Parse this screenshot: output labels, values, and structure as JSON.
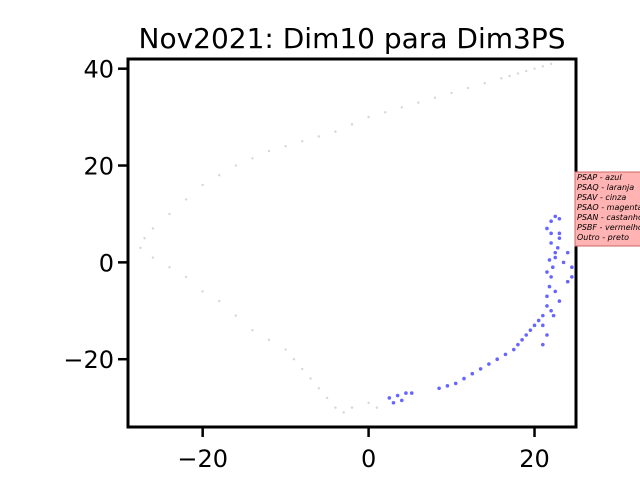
{
  "chart_data": {
    "type": "scatter",
    "title": "Nov2021: Dim10 para Dim3PS",
    "xlabel": "",
    "ylabel": "",
    "xlim": [
      -29,
      25
    ],
    "ylim": [
      -34,
      42
    ],
    "xticks": [
      -20,
      0,
      20
    ],
    "xtick_labels": [
      "−20",
      "0",
      "20"
    ],
    "yticks": [
      40,
      20,
      0,
      -20
    ],
    "ytick_labels": [
      "40",
      "20",
      "0",
      "−20"
    ],
    "grid": false,
    "legend_placement": "right",
    "legend": {
      "background": "#ffb3b3",
      "entries": [
        "PSAP - azul",
        "PSAQ - laranja",
        "PSAV - cinza",
        "PSAO - magenta",
        "PSAN - castanho",
        "PSBF - vermelho",
        "Outro - preto"
      ]
    },
    "colors": {
      "blue_points": "#3333ff",
      "faint_points": "#d0d0d8"
    },
    "series": [
      {
        "color": "#3333ff",
        "x": [
          2.5,
          3.5,
          4.5,
          5.2,
          3.0,
          4.0,
          8.5,
          9.5,
          10.5,
          11.5,
          12.5,
          13.5,
          14.5,
          15.5,
          16.5,
          17.5,
          18.0,
          18.5,
          19.0,
          19.5,
          20.0,
          20.5,
          21.0,
          21.0,
          21.5,
          21.5,
          21.8,
          22.0,
          22.2,
          22.5,
          22.8,
          23.0,
          23.5,
          24.0,
          24.5,
          21.5,
          22.0,
          22.5,
          23.0,
          22.0,
          21.0,
          21.5,
          22.0,
          22.5,
          23.0,
          24.0,
          24.5,
          21.5,
          22.0,
          22.5,
          23.0,
          21.8,
          22.3
        ],
        "y": [
          -28.0,
          -27.5,
          -27.0,
          -27.0,
          -29.0,
          -28.5,
          -26.0,
          -25.5,
          -25.0,
          -24.0,
          -23.0,
          -22.0,
          -21.0,
          -20.0,
          -19.0,
          -18.0,
          -17.0,
          -16.0,
          -15.0,
          -14.0,
          -13.0,
          -12.0,
          -11.0,
          -17.0,
          -9.0,
          -7.0,
          -5.0,
          -3.0,
          -1.0,
          1.0,
          3.0,
          5.0,
          0.0,
          2.0,
          -3.0,
          7.0,
          8.5,
          9.5,
          9.0,
          6.0,
          -13.0,
          -15.0,
          -10.0,
          -6.0,
          -8.0,
          -4.0,
          -1.0,
          -2.0,
          4.0,
          2.0,
          6.0,
          0.5,
          -11.0
        ]
      },
      {
        "color": "#d0d0d8",
        "x": [
          20.0,
          18.0,
          16.0,
          14.0,
          12.0,
          10.0,
          8.0,
          6.0,
          4.0,
          2.0,
          0.0,
          -2.0,
          -4.0,
          -6.0,
          -8.0,
          -10.0,
          -12.0,
          -14.0,
          -16.0,
          -18.0,
          -20.0,
          -22.0,
          -24.0,
          -26.0,
          -27.0,
          -27.5,
          -26.0,
          -24.0,
          -22.0,
          -20.0,
          -18.0,
          -16.0,
          -14.0,
          -12.0,
          -10.0,
          -9.0,
          -8.0,
          -7.0,
          -6.0,
          -5.0,
          -4.0,
          -3.0,
          -2.0,
          0.0,
          1.0,
          22.0,
          21.0,
          19.0,
          17.0
        ],
        "y": [
          40.0,
          39.0,
          38.0,
          37.0,
          36.0,
          35.0,
          34.0,
          33.0,
          32.0,
          31.0,
          30.0,
          28.5,
          27.0,
          26.0,
          25.0,
          24.0,
          23.0,
          21.5,
          20.0,
          18.0,
          16.0,
          13.0,
          10.0,
          7.0,
          5.0,
          3.0,
          1.0,
          -1.0,
          -3.0,
          -6.0,
          -8.0,
          -11.0,
          -14.0,
          -16.0,
          -18.0,
          -20.0,
          -22.0,
          -24.0,
          -26.0,
          -28.0,
          -30.0,
          -31.0,
          -30.0,
          -29.0,
          -30.0,
          41.0,
          40.5,
          39.5,
          38.5
        ]
      }
    ]
  }
}
